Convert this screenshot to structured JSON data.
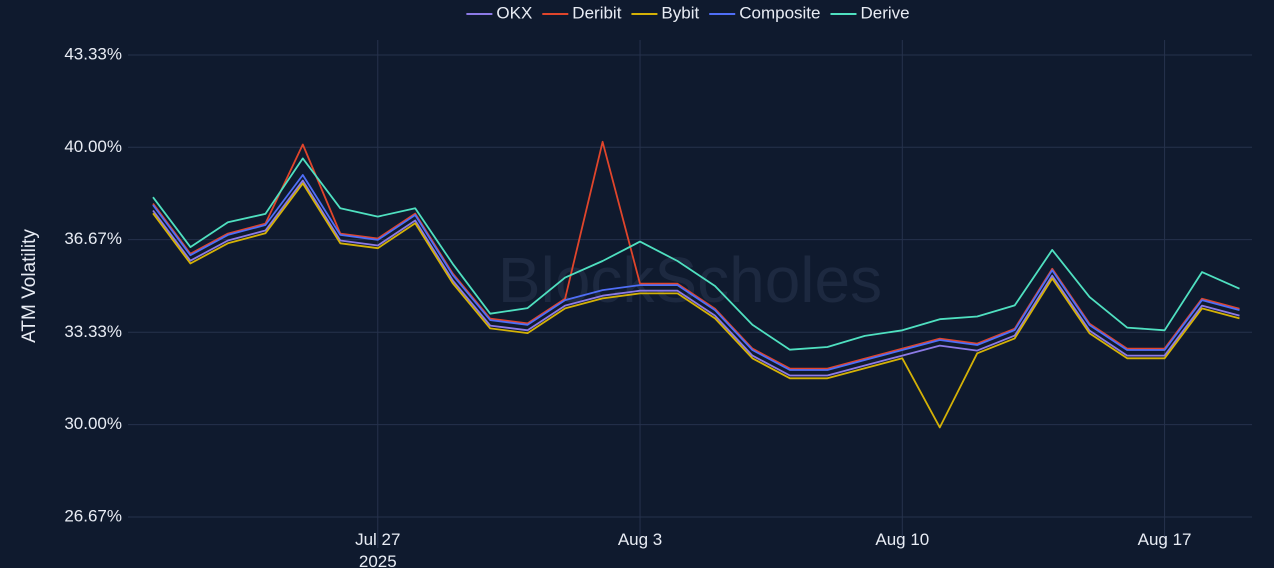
{
  "chart_data": {
    "type": "line",
    "watermark": "BlockScholes",
    "y_label": "ATM Volatility",
    "x": [
      "2025-07-21",
      "2025-07-22",
      "2025-07-23",
      "2025-07-24",
      "2025-07-25",
      "2025-07-26",
      "2025-07-27",
      "2025-07-28",
      "2025-07-29",
      "2025-07-30",
      "2025-07-31",
      "2025-08-01",
      "2025-08-02",
      "2025-08-03",
      "2025-08-04",
      "2025-08-05",
      "2025-08-06",
      "2025-08-07",
      "2025-08-08",
      "2025-08-09",
      "2025-08-10",
      "2025-08-11",
      "2025-08-12",
      "2025-08-13",
      "2025-08-14",
      "2025-08-15",
      "2025-08-16",
      "2025-08-17",
      "2025-08-18",
      "2025-08-19"
    ],
    "xlim": [
      "2025-07-20T08:00",
      "2025-08-19T08:00"
    ],
    "xticks": [
      {
        "value": "2025-07-27",
        "label": "Jul 27\n2025"
      },
      {
        "value": "2025-08-03",
        "label": "Aug 3"
      },
      {
        "value": "2025-08-10",
        "label": "Aug 10"
      },
      {
        "value": "2025-08-17",
        "label": "Aug 17"
      }
    ],
    "ylim": [
      25.55,
      43.87
    ],
    "yticks": [
      {
        "value": 26.67,
        "label": "26.67%"
      },
      {
        "value": 30,
        "label": "30.00%"
      },
      {
        "value": 33.33,
        "label": "33.33%"
      },
      {
        "value": 36.67,
        "label": "36.67%"
      },
      {
        "value": 40,
        "label": "40.00%"
      },
      {
        "value": 43.33,
        "label": "43.33%"
      }
    ],
    "grid": true,
    "legend": "top",
    "series": [
      {
        "name": "OKX",
        "color": "#8c7ae6",
        "values": [
          37.72,
          35.91,
          36.64,
          37.0,
          38.8,
          36.64,
          36.46,
          37.36,
          35.2,
          33.57,
          33.4,
          34.29,
          34.65,
          34.83,
          34.83,
          33.93,
          32.49,
          31.77,
          31.77,
          32.13,
          32.49,
          32.85,
          32.67,
          33.21,
          35.37,
          33.39,
          32.49,
          32.49,
          34.29,
          33.93
        ]
      },
      {
        "name": "Deribit",
        "color": "#e0452b",
        "values": [
          37.97,
          36.16,
          36.89,
          37.25,
          40.1,
          36.89,
          36.71,
          37.61,
          35.45,
          33.82,
          33.65,
          34.54,
          40.2,
          35.08,
          35.08,
          34.18,
          32.74,
          32.02,
          32.02,
          32.38,
          32.74,
          33.1,
          32.92,
          33.46,
          35.62,
          33.64,
          32.74,
          32.74,
          34.54,
          34.18
        ]
      },
      {
        "name": "Bybit",
        "color": "#d4b106",
        "values": [
          37.62,
          35.81,
          36.54,
          36.9,
          38.7,
          36.54,
          36.36,
          37.26,
          35.1,
          33.47,
          33.3,
          34.19,
          34.55,
          34.73,
          34.73,
          33.83,
          32.39,
          31.67,
          31.67,
          32.03,
          32.39,
          29.9,
          32.57,
          33.11,
          35.27,
          33.29,
          32.39,
          32.39,
          34.19,
          33.83
        ]
      },
      {
        "name": "Composite",
        "color": "#4f6ef7",
        "values": [
          37.92,
          36.11,
          36.84,
          37.2,
          39.0,
          36.84,
          36.66,
          37.56,
          35.4,
          33.77,
          33.6,
          34.49,
          34.85,
          35.03,
          35.03,
          34.13,
          32.69,
          31.97,
          31.97,
          32.33,
          32.69,
          33.05,
          32.87,
          33.41,
          35.57,
          33.59,
          32.69,
          32.69,
          34.49,
          34.13
        ]
      },
      {
        "name": "Derive",
        "color": "#4fe0c0",
        "values": [
          38.2,
          36.4,
          37.3,
          37.6,
          39.6,
          37.8,
          37.5,
          37.8,
          35.8,
          34.0,
          34.2,
          35.3,
          35.9,
          36.6,
          35.9,
          35.0,
          33.6,
          32.7,
          32.8,
          33.2,
          33.4,
          33.8,
          33.9,
          34.3,
          36.3,
          34.6,
          33.5,
          33.4,
          35.5,
          34.9
        ]
      }
    ]
  }
}
